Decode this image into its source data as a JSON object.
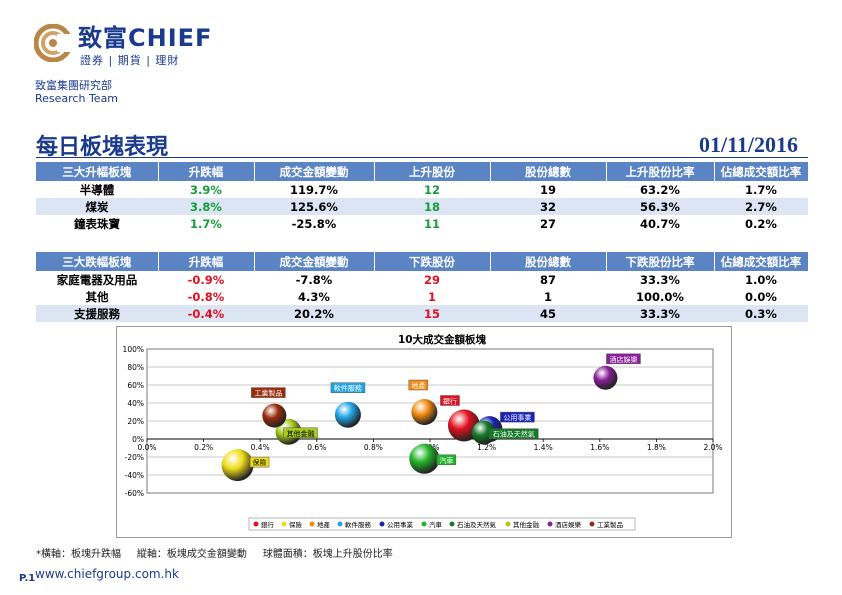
{
  "brand": {
    "name_cn": "致富",
    "name_en": "CHIEF",
    "tagline": "證券 | 期貨 | 理財"
  },
  "department": {
    "cn": "致富集團研究部",
    "en": "Research Team"
  },
  "report": {
    "title": "每日板塊表現",
    "date": "01/11/2016"
  },
  "table_up": {
    "headers": [
      "三大升幅板塊",
      "升跌幅",
      "成交金額變動",
      "上升股份",
      "股份總數",
      "上升股份比率",
      "佔總成交額比率"
    ],
    "rows": [
      [
        "半導體",
        "3.9%",
        "119.7%",
        "12",
        "19",
        "63.2%",
        "1.7%"
      ],
      [
        "煤炭",
        "3.8%",
        "125.6%",
        "18",
        "32",
        "56.3%",
        "2.7%"
      ],
      [
        "鐘表珠寶",
        "1.7%",
        "-25.8%",
        "11",
        "27",
        "40.7%",
        "0.2%"
      ]
    ]
  },
  "table_down": {
    "headers": [
      "三大跌幅板塊",
      "升跌幅",
      "成交金額變動",
      "下跌股份",
      "股份總數",
      "下跌股份比率",
      "佔總成交額比率"
    ],
    "rows": [
      [
        "家庭電器及用品",
        "-0.9%",
        "-7.8%",
        "29",
        "87",
        "33.3%",
        "1.0%"
      ],
      [
        "其他",
        "-0.8%",
        "4.3%",
        "1",
        "1",
        "100.0%",
        "0.0%"
      ],
      [
        "支援服務",
        "-0.4%",
        "20.2%",
        "15",
        "45",
        "33.3%",
        "0.3%"
      ]
    ]
  },
  "colors": {
    "brand": "#1a3a8c",
    "header_bg": "#5b84c4",
    "gain": "#169c3a",
    "loss": "#e0101e"
  },
  "chart_data": {
    "type": "scatter",
    "title": "10大成交金額板塊",
    "xlim": [
      0,
      2.0
    ],
    "ylim": [
      -60,
      100
    ],
    "x_ticks": [
      "0.0%",
      "0.2%",
      "0.4%",
      "0.6%",
      "0.8%",
      "1.0%",
      "1.2%",
      "1.4%",
      "1.6%",
      "1.8%",
      "2.0%"
    ],
    "y_ticks": [
      "100%",
      "80%",
      "60%",
      "40%",
      "20%",
      "0%",
      "-20%",
      "-40%",
      "-60%"
    ],
    "grid": "horizontal",
    "legend": "bottom",
    "series": [
      {
        "name": "銀行",
        "x": 1.12,
        "y": 15,
        "size": 16,
        "color": "#e0101e"
      },
      {
        "name": "保險",
        "x": 0.32,
        "y": -29,
        "size": 16,
        "color": "#eedc1a"
      },
      {
        "name": "地產",
        "x": 0.98,
        "y": 30,
        "size": 13,
        "color": "#f38a12"
      },
      {
        "name": "軟件服務",
        "x": 0.71,
        "y": 27,
        "size": 13,
        "color": "#1fa4e4"
      },
      {
        "name": "公用事業",
        "x": 1.21,
        "y": 11,
        "size": 13,
        "color": "#1a22b8"
      },
      {
        "name": "汽車",
        "x": 0.98,
        "y": -22,
        "size": 15,
        "color": "#22b428"
      },
      {
        "name": "石油及天然氣",
        "x": 1.19,
        "y": 7,
        "size": 12,
        "color": "#137a27"
      },
      {
        "name": "其他金融",
        "x": 0.5,
        "y": 8,
        "size": 13,
        "color": "#a8ca1e"
      },
      {
        "name": "酒店娛樂",
        "x": 1.62,
        "y": 68,
        "size": 12,
        "color": "#8b1e9a"
      },
      {
        "name": "工業製品",
        "x": 0.45,
        "y": 26,
        "size": 12,
        "color": "#9a2c0c"
      }
    ]
  },
  "footnote": {
    "prefix": "*",
    "x_axis": "橫軸：板塊升跌幅",
    "y_axis": "縱軸：板塊成交金額變動",
    "size": "球體面積：板塊上升股份比率"
  },
  "footer": {
    "page": "P.1",
    "url": "www.chiefgroup.com.hk"
  }
}
